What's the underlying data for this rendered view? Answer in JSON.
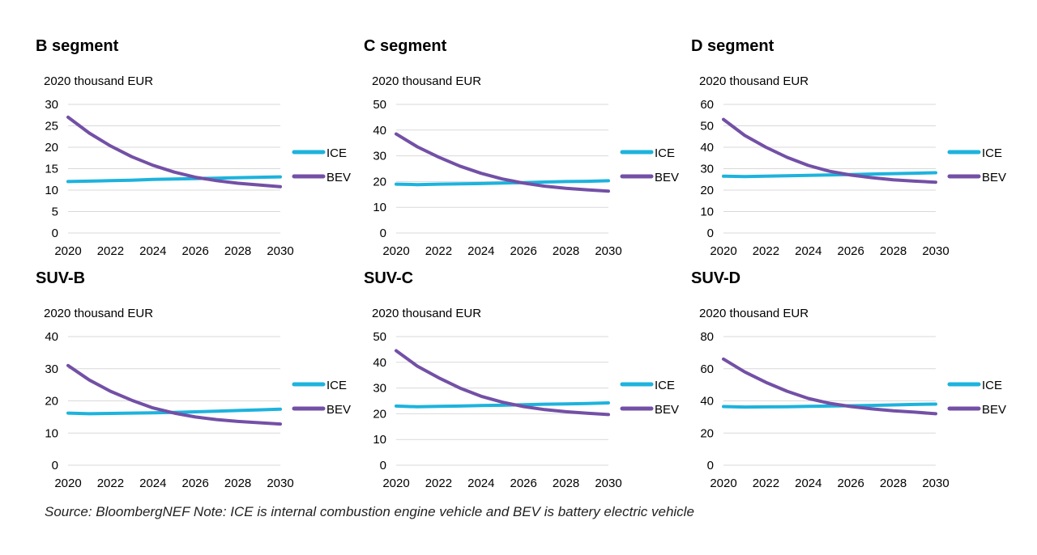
{
  "colors": {
    "ice": "#1db3dd",
    "bev": "#7350a6",
    "grid": "#d9d9d9"
  },
  "source_note": "Source: BloombergNEF Note: ICE is internal combustion engine vehicle and BEV is battery electric vehicle",
  "chart_data": [
    {
      "id": "b-segment",
      "type": "line",
      "title": "B segment",
      "ylabel": "2020 thousand EUR",
      "ylim": [
        0,
        30
      ],
      "yticks": [
        0,
        5,
        10,
        15,
        20,
        25,
        30
      ],
      "xlim": [
        2020,
        2030
      ],
      "xticks": [
        2020,
        2022,
        2024,
        2026,
        2028,
        2030
      ],
      "x": [
        2020,
        2021,
        2022,
        2023,
        2024,
        2025,
        2026,
        2027,
        2028,
        2029,
        2030
      ],
      "legend": "right",
      "series": [
        {
          "name": "ICE",
          "values": [
            12.0,
            12.1,
            12.2,
            12.3,
            12.5,
            12.6,
            12.7,
            12.8,
            12.9,
            13.0,
            13.1
          ]
        },
        {
          "name": "BEV",
          "values": [
            27.0,
            23.3,
            20.3,
            17.8,
            15.8,
            14.2,
            13.0,
            12.2,
            11.6,
            11.2,
            10.8
          ]
        }
      ]
    },
    {
      "id": "c-segment",
      "type": "line",
      "title": "C segment",
      "ylabel": "2020 thousand EUR",
      "ylim": [
        0,
        50
      ],
      "yticks": [
        0,
        10,
        20,
        30,
        40,
        50
      ],
      "xlim": [
        2020,
        2030
      ],
      "xticks": [
        2020,
        2022,
        2024,
        2026,
        2028,
        2030
      ],
      "x": [
        2020,
        2021,
        2022,
        2023,
        2024,
        2025,
        2026,
        2027,
        2028,
        2029,
        2030
      ],
      "legend": "right",
      "series": [
        {
          "name": "ICE",
          "values": [
            19.0,
            18.8,
            19.0,
            19.1,
            19.2,
            19.4,
            19.6,
            19.8,
            20.0,
            20.1,
            20.3
          ]
        },
        {
          "name": "BEV",
          "values": [
            38.5,
            33.5,
            29.5,
            26.0,
            23.2,
            21.0,
            19.4,
            18.2,
            17.4,
            16.8,
            16.3
          ]
        }
      ]
    },
    {
      "id": "d-segment",
      "type": "line",
      "title": "D segment",
      "ylabel": "2020 thousand EUR",
      "ylim": [
        0,
        60
      ],
      "yticks": [
        0,
        10,
        20,
        30,
        40,
        50,
        60
      ],
      "xlim": [
        2020,
        2030
      ],
      "xticks": [
        2020,
        2022,
        2024,
        2026,
        2028,
        2030
      ],
      "x": [
        2020,
        2021,
        2022,
        2023,
        2024,
        2025,
        2026,
        2027,
        2028,
        2029,
        2030
      ],
      "legend": "right",
      "series": [
        {
          "name": "ICE",
          "values": [
            26.5,
            26.3,
            26.5,
            26.7,
            26.9,
            27.1,
            27.3,
            27.5,
            27.7,
            27.9,
            28.1
          ]
        },
        {
          "name": "BEV",
          "values": [
            53.0,
            45.5,
            40.0,
            35.3,
            31.5,
            28.8,
            27.0,
            25.8,
            24.8,
            24.2,
            23.7
          ]
        }
      ]
    },
    {
      "id": "suv-b",
      "type": "line",
      "title": "SUV-B",
      "ylabel": "2020 thousand EUR",
      "ylim": [
        0,
        40
      ],
      "yticks": [
        0,
        10,
        20,
        30,
        40
      ],
      "xlim": [
        2020,
        2030
      ],
      "xticks": [
        2020,
        2022,
        2024,
        2026,
        2028,
        2030
      ],
      "x": [
        2020,
        2021,
        2022,
        2023,
        2024,
        2025,
        2026,
        2027,
        2028,
        2029,
        2030
      ],
      "legend": "right",
      "series": [
        {
          "name": "ICE",
          "values": [
            16.2,
            16.0,
            16.1,
            16.2,
            16.3,
            16.4,
            16.6,
            16.8,
            17.0,
            17.2,
            17.4
          ]
        },
        {
          "name": "BEV",
          "values": [
            31.0,
            26.5,
            23.0,
            20.2,
            17.8,
            16.2,
            15.0,
            14.2,
            13.6,
            13.2,
            12.8
          ]
        }
      ]
    },
    {
      "id": "suv-c",
      "type": "line",
      "title": "SUV-C",
      "ylabel": "2020 thousand EUR",
      "ylim": [
        0,
        50
      ],
      "yticks": [
        0,
        10,
        20,
        30,
        40,
        50
      ],
      "xlim": [
        2020,
        2030
      ],
      "xticks": [
        2020,
        2022,
        2024,
        2026,
        2028,
        2030
      ],
      "x": [
        2020,
        2021,
        2022,
        2023,
        2024,
        2025,
        2026,
        2027,
        2028,
        2029,
        2030
      ],
      "legend": "right",
      "series": [
        {
          "name": "ICE",
          "values": [
            23.0,
            22.7,
            22.9,
            23.0,
            23.2,
            23.3,
            23.5,
            23.7,
            23.8,
            24.0,
            24.2
          ]
        },
        {
          "name": "BEV",
          "values": [
            44.5,
            38.5,
            34.0,
            30.0,
            26.8,
            24.5,
            22.8,
            21.6,
            20.8,
            20.2,
            19.7
          ]
        }
      ]
    },
    {
      "id": "suv-d",
      "type": "line",
      "title": "SUV-D",
      "ylabel": "2020 thousand EUR",
      "ylim": [
        0,
        80
      ],
      "yticks": [
        0,
        20,
        40,
        60,
        80
      ],
      "xlim": [
        2020,
        2030
      ],
      "xticks": [
        2020,
        2022,
        2024,
        2026,
        2028,
        2030
      ],
      "x": [
        2020,
        2021,
        2022,
        2023,
        2024,
        2025,
        2026,
        2027,
        2028,
        2029,
        2030
      ],
      "legend": "right",
      "series": [
        {
          "name": "ICE",
          "values": [
            36.5,
            36.2,
            36.3,
            36.4,
            36.6,
            36.8,
            37.0,
            37.2,
            37.5,
            37.8,
            38.0
          ]
        },
        {
          "name": "BEV",
          "values": [
            66.0,
            58.0,
            51.5,
            46.0,
            41.5,
            38.5,
            36.5,
            35.0,
            33.8,
            33.0,
            32.0
          ]
        }
      ]
    }
  ]
}
